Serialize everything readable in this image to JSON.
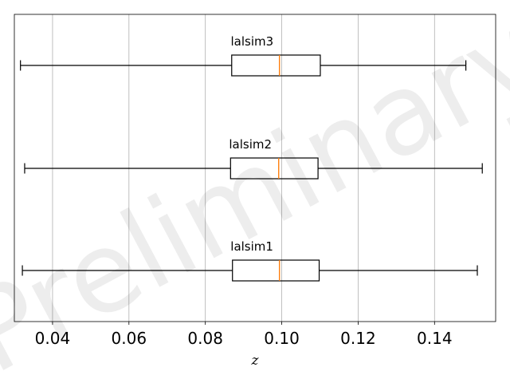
{
  "chart_data": {
    "type": "boxplot",
    "orientation": "horizontal",
    "xlabel": "z",
    "xlim": [
      0.03,
      0.156
    ],
    "xticks": [
      0.04,
      0.06,
      0.08,
      0.1,
      0.12,
      0.14
    ],
    "xtick_labels": [
      "0.04",
      "0.06",
      "0.08",
      "0.10",
      "0.12",
      "0.14"
    ],
    "grid": "vertical",
    "series": [
      {
        "name": "lalsim1",
        "whisker_low": 0.0321,
        "q1": 0.0871,
        "median": 0.0994,
        "q3": 0.1098,
        "whisker_high": 0.1512
      },
      {
        "name": "lalsim2",
        "whisker_low": 0.0327,
        "q1": 0.0866,
        "median": 0.0992,
        "q3": 0.1095,
        "whisker_high": 0.1525
      },
      {
        "name": "lalsim3",
        "whisker_low": 0.0316,
        "q1": 0.0869,
        "median": 0.0994,
        "q3": 0.1101,
        "whisker_high": 0.1482
      }
    ],
    "watermark": "Preliminary",
    "colors": {
      "box": "#000000",
      "median": "#ff7f0e",
      "grid": "#b0b0b0",
      "watermark": "#000000"
    }
  }
}
